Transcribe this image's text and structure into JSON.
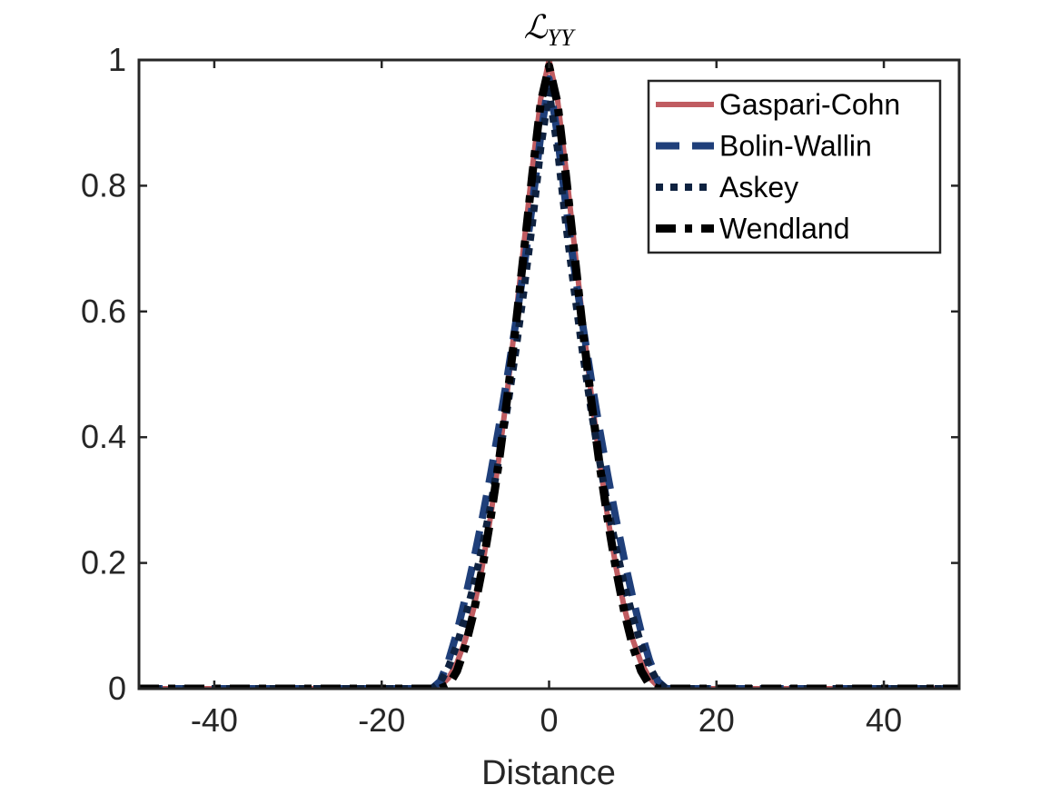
{
  "chart_data": {
    "type": "line",
    "title_main": "ℒ",
    "title_sub": "YY",
    "xlabel": "Distance",
    "ylabel": "",
    "xlim": [
      -49,
      49
    ],
    "ylim": [
      0,
      1
    ],
    "xticks": [
      -40,
      -20,
      0,
      20,
      40
    ],
    "xtick_labels": [
      "-40",
      "-20",
      "0",
      "20",
      "40"
    ],
    "yticks": [
      0,
      0.2,
      0.4,
      0.6,
      0.8,
      1
    ],
    "ytick_labels": [
      "0",
      "0.2",
      "0.4",
      "0.6",
      "0.8",
      "1"
    ],
    "grid": false,
    "legend_position": "top-right",
    "series": [
      {
        "name": "Gaspari-Cohn",
        "color": "#c05c61",
        "dash": "solid",
        "x": [
          -49,
          -14,
          -13,
          -12,
          -11,
          -10,
          -9,
          -8,
          -7,
          -6,
          -5,
          -4,
          -3,
          -2,
          -1,
          0,
          1,
          2,
          3,
          4,
          5,
          6,
          7,
          8,
          9,
          10,
          11,
          12,
          13,
          14,
          49
        ],
        "y": [
          0,
          0,
          0.004,
          0.017,
          0.041,
          0.078,
          0.128,
          0.193,
          0.273,
          0.366,
          0.472,
          0.587,
          0.708,
          0.828,
          0.938,
          1,
          0.938,
          0.828,
          0.708,
          0.587,
          0.472,
          0.366,
          0.273,
          0.193,
          0.128,
          0.078,
          0.041,
          0.017,
          0.004,
          0,
          0
        ]
      },
      {
        "name": "Bolin-Wallin",
        "color": "#1f3f7a",
        "dash": "dashed",
        "x": [
          -49,
          -14,
          -13,
          -12,
          -11,
          -10,
          -9,
          -8,
          -7,
          -6,
          -5,
          -4,
          -3,
          -2,
          -1,
          0,
          1,
          2,
          3,
          4,
          5,
          6,
          7,
          8,
          9,
          10,
          11,
          12,
          13,
          14,
          49
        ],
        "y": [
          0,
          0,
          0.012,
          0.045,
          0.09,
          0.145,
          0.205,
          0.27,
          0.34,
          0.415,
          0.495,
          0.58,
          0.67,
          0.77,
          0.88,
          0.97,
          0.88,
          0.77,
          0.67,
          0.58,
          0.495,
          0.415,
          0.34,
          0.27,
          0.205,
          0.145,
          0.09,
          0.045,
          0.012,
          0,
          0
        ]
      },
      {
        "name": "Askey",
        "color": "#0f2240",
        "dash": "dotted",
        "x": [
          -49,
          -14,
          -13,
          -12,
          -11,
          -10,
          -9,
          -8,
          -7,
          -6,
          -5,
          -4,
          -3,
          -2,
          -1,
          0,
          1,
          2,
          3,
          4,
          5,
          6,
          7,
          8,
          9,
          10,
          11,
          12,
          13,
          14,
          49
        ],
        "y": [
          0,
          0,
          0.01,
          0.035,
          0.07,
          0.115,
          0.165,
          0.225,
          0.29,
          0.365,
          0.445,
          0.535,
          0.635,
          0.74,
          0.86,
          0.95,
          0.86,
          0.74,
          0.635,
          0.535,
          0.445,
          0.365,
          0.29,
          0.225,
          0.165,
          0.115,
          0.07,
          0.035,
          0.01,
          0,
          0
        ]
      },
      {
        "name": "Wendland",
        "color": "#000000",
        "dash": "dashdot",
        "x": [
          -49,
          -13,
          -12,
          -11,
          -10,
          -9,
          -8,
          -7,
          -6,
          -5,
          -4,
          -3,
          -2,
          -1,
          0,
          1,
          2,
          3,
          4,
          5,
          6,
          7,
          8,
          9,
          10,
          11,
          12,
          13,
          49
        ],
        "y": [
          0,
          0,
          0.006,
          0.028,
          0.068,
          0.122,
          0.19,
          0.27,
          0.36,
          0.462,
          0.574,
          0.696,
          0.818,
          0.932,
          0.99,
          0.932,
          0.818,
          0.696,
          0.574,
          0.462,
          0.36,
          0.27,
          0.19,
          0.122,
          0.068,
          0.028,
          0.006,
          0,
          0
        ]
      }
    ]
  }
}
